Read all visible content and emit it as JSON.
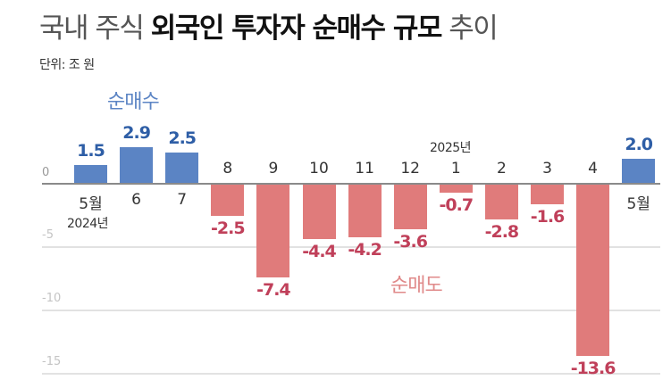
{
  "title": {
    "prefix": "국내 주식 ",
    "bold": "외국인 투자자 순매수 규모",
    "suffix": " 추이"
  },
  "unit": "단위: 조 원",
  "legend": {
    "buy": "순매수",
    "sell": "순매도"
  },
  "colors": {
    "positive": "#5b84c4",
    "negative": "#e07b7b",
    "positive_label": "#2e5ea6",
    "negative_label": "#c0405a"
  },
  "year_labels": {
    "y2024": "2024년",
    "y2025": "2025년"
  },
  "chart_data": {
    "type": "bar",
    "title": "국내 주식 외국인 투자자 순매수 규모 추이",
    "subtitle": "단위: 조 원",
    "xlabel": "",
    "ylabel": "조 원",
    "ylim": [
      -15,
      3
    ],
    "yticks": [
      0,
      -5,
      -10,
      -15
    ],
    "grid": true,
    "categories": [
      "5월",
      "6",
      "7",
      "8",
      "9",
      "10",
      "11",
      "12",
      "1",
      "2",
      "3",
      "4",
      "5월"
    ],
    "category_years": [
      "2024",
      "2024",
      "2024",
      "2024",
      "2024",
      "2024",
      "2024",
      "2024",
      "2025",
      "2025",
      "2025",
      "2025",
      "2025"
    ],
    "values": [
      1.5,
      2.9,
      2.5,
      -2.5,
      -7.4,
      -4.4,
      -4.2,
      -3.6,
      -0.7,
      -2.8,
      -1.6,
      -13.6,
      2.0
    ],
    "value_labels": [
      "1.5",
      "2.9",
      "2.5",
      "-2.5",
      "-7.4",
      "-4.4",
      "-4.2",
      "-3.6",
      "-0.7",
      "-2.8",
      "-1.6",
      "-13.6",
      "2.0"
    ],
    "annotations": [
      "순매수",
      "순매도",
      "2024년",
      "2025년"
    ]
  }
}
